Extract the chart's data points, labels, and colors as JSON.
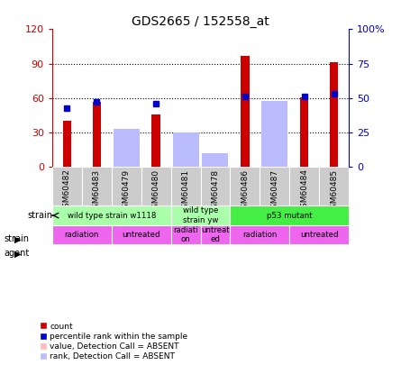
{
  "title": "GDS2665 / 152558_at",
  "samples": [
    "GSM60482",
    "GSM60483",
    "GSM60479",
    "GSM60480",
    "GSM60481",
    "GSM60478",
    "GSM60486",
    "GSM60487",
    "GSM60484",
    "GSM60485"
  ],
  "count": [
    40,
    57,
    null,
    46,
    null,
    null,
    97,
    null,
    61,
    91
  ],
  "percentile_rank": [
    43,
    47,
    null,
    46,
    null,
    null,
    51,
    null,
    51,
    53
  ],
  "absent_value": [
    null,
    null,
    25,
    null,
    24,
    9,
    null,
    57,
    null,
    null
  ],
  "absent_rank": [
    null,
    null,
    28,
    null,
    25,
    10,
    null,
    48,
    null,
    null
  ],
  "ylim_left": [
    0,
    120
  ],
  "ylim_right": [
    0,
    100
  ],
  "yticks_left": [
    0,
    30,
    60,
    90,
    120
  ],
  "yticks_right": [
    0,
    25,
    50,
    75,
    100
  ],
  "ytick_labels_left": [
    "0",
    "30",
    "60",
    "90",
    "120"
  ],
  "ytick_labels_right": [
    "0",
    "25",
    "50",
    "75",
    "100%"
  ],
  "strain_groups": [
    {
      "label": "wild type strain w1118",
      "start": 0,
      "end": 3,
      "color": "#aaffaa"
    },
    {
      "label": "wild type\nstrain yw",
      "start": 4,
      "end": 5,
      "color": "#aaffaa"
    },
    {
      "label": "p53 mutant",
      "start": 6,
      "end": 9,
      "color": "#44ee44"
    }
  ],
  "agent_groups": [
    {
      "label": "radiation",
      "start": 0,
      "end": 1,
      "color": "#ee66ee"
    },
    {
      "label": "untreated",
      "start": 2,
      "end": 3,
      "color": "#ee66ee"
    },
    {
      "label": "radiati\non",
      "start": 4,
      "end": 4,
      "color": "#ee66ee"
    },
    {
      "label": "untreat\ned",
      "start": 5,
      "end": 5,
      "color": "#ee66ee"
    },
    {
      "label": "radiation",
      "start": 6,
      "end": 7,
      "color": "#ee66ee"
    },
    {
      "label": "untreated",
      "start": 8,
      "end": 9,
      "color": "#ee66ee"
    }
  ],
  "color_count": "#cc0000",
  "color_rank": "#0000cc",
  "color_absent_value": "#ffbbbb",
  "color_absent_rank": "#bbbbff",
  "xlim": [
    -0.5,
    9.5
  ],
  "bar_width": 0.4,
  "gray_label": "#cccccc",
  "legend_items": [
    {
      "color": "#cc0000",
      "label": "count"
    },
    {
      "color": "#0000cc",
      "label": "percentile rank within the sample"
    },
    {
      "color": "#ffbbbb",
      "label": "value, Detection Call = ABSENT"
    },
    {
      "color": "#bbbbff",
      "label": "rank, Detection Call = ABSENT"
    }
  ]
}
